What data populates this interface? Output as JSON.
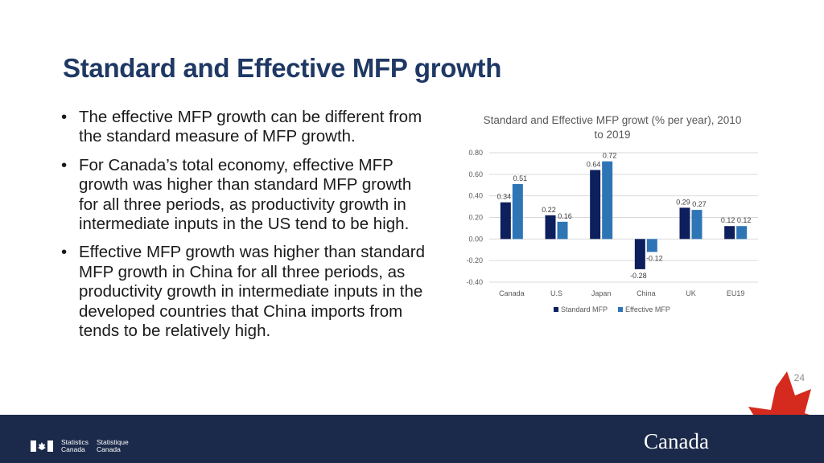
{
  "slide": {
    "title": "Standard and Effective MFP growth",
    "page_number": "24",
    "bullets": [
      "The effective MFP growth can be different from the standard measure of MFP growth.",
      "For Canada’s total economy, effective MFP growth was higher than standard MFP growth for all three periods, as productivity growth in intermediate inputs in the US tend to be high.",
      "Effective MFP growth was higher than standard MFP growth in China for all three periods, as productivity growth in intermediate inputs in the developed countries that China imports from tends to be relatively high."
    ],
    "bullet_symbol": "•"
  },
  "footer": {
    "org_en_1": "Statistics",
    "org_en_2": "Canada",
    "org_fr_1": "Statistique",
    "org_fr_2": "Canada",
    "wordmark": "Canada",
    "bg_color": "#1b2a4a"
  },
  "chart_data": {
    "type": "bar",
    "title": "Standard and Effective MFP growt (% per year), 2010 to 2019",
    "categories": [
      "Canada",
      "U.S",
      "Japan",
      "China",
      "UK",
      "EU19"
    ],
    "series": [
      {
        "name": "Standard MFP",
        "values": [
          0.34,
          0.22,
          0.64,
          -0.28,
          0.29,
          0.12
        ],
        "color": "#0d1f5c"
      },
      {
        "name": "Effective MFP",
        "values": [
          0.51,
          0.16,
          0.72,
          -0.12,
          0.27,
          0.12
        ],
        "color": "#2e75b6"
      }
    ],
    "ylim": [
      -0.4,
      0.8
    ],
    "yticks": [
      "0.80",
      "0.60",
      "0.40",
      "0.20",
      "0.00",
      "-0.20",
      "-0.40"
    ],
    "ytick_values": [
      0.8,
      0.6,
      0.4,
      0.2,
      0.0,
      -0.2,
      -0.4
    ],
    "data_labels": [
      [
        "0.34",
        "0.22",
        "0.64",
        "-0.28",
        "0.29",
        "0.12"
      ],
      [
        "0.51",
        "0.16",
        "0.72",
        "-0.12",
        "0.27",
        "0.12"
      ]
    ],
    "grid": true,
    "legend_position": "bottom"
  }
}
